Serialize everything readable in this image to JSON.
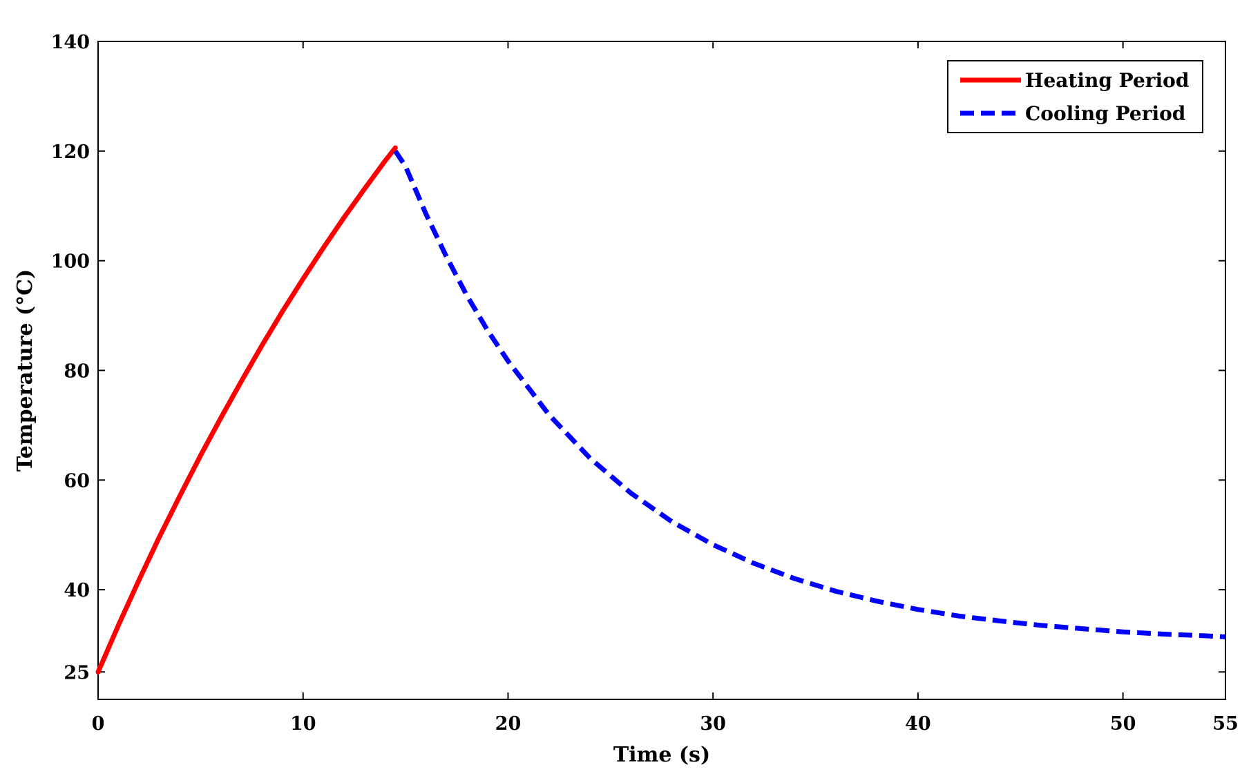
{
  "chart_data": {
    "type": "line",
    "title": "",
    "xlabel": "Time (s)",
    "ylabel": "Temperature (°C)",
    "xlim": [
      0,
      55
    ],
    "ylim": [
      20,
      140
    ],
    "xticks": [
      0,
      10,
      20,
      30,
      40,
      50,
      55
    ],
    "yticks": [
      25,
      40,
      60,
      80,
      100,
      120,
      140
    ],
    "grid": false,
    "legend_position": "top-right",
    "series": [
      {
        "name": "Heating Period",
        "color": "#ff0000",
        "style": "solid",
        "x": [
          0,
          1,
          2,
          3,
          4,
          5,
          6,
          7,
          8,
          9,
          10,
          11,
          12,
          13,
          14,
          14.5
        ],
        "y": [
          25,
          33.6,
          41.8,
          49.7,
          57.2,
          64.5,
          71.4,
          78.1,
          84.6,
          90.8,
          96.7,
          102.4,
          107.9,
          113.1,
          118.2,
          120.6
        ]
      },
      {
        "name": "Cooling Period",
        "color": "#0000ff",
        "style": "dashed",
        "x": [
          14.5,
          15,
          16,
          17,
          18,
          19,
          20,
          22,
          24,
          26,
          28,
          30,
          32,
          34,
          36,
          38,
          40,
          42,
          44,
          46,
          48,
          50,
          52,
          54,
          55
        ],
        "y": [
          120,
          117.2,
          108.5,
          100.7,
          93.6,
          87.3,
          81.7,
          71.9,
          64.0,
          57.6,
          52.4,
          48.2,
          44.8,
          42.0,
          39.7,
          37.9,
          36.4,
          35.2,
          34.3,
          33.5,
          32.9,
          32.3,
          31.9,
          31.6,
          31.4
        ]
      }
    ]
  }
}
